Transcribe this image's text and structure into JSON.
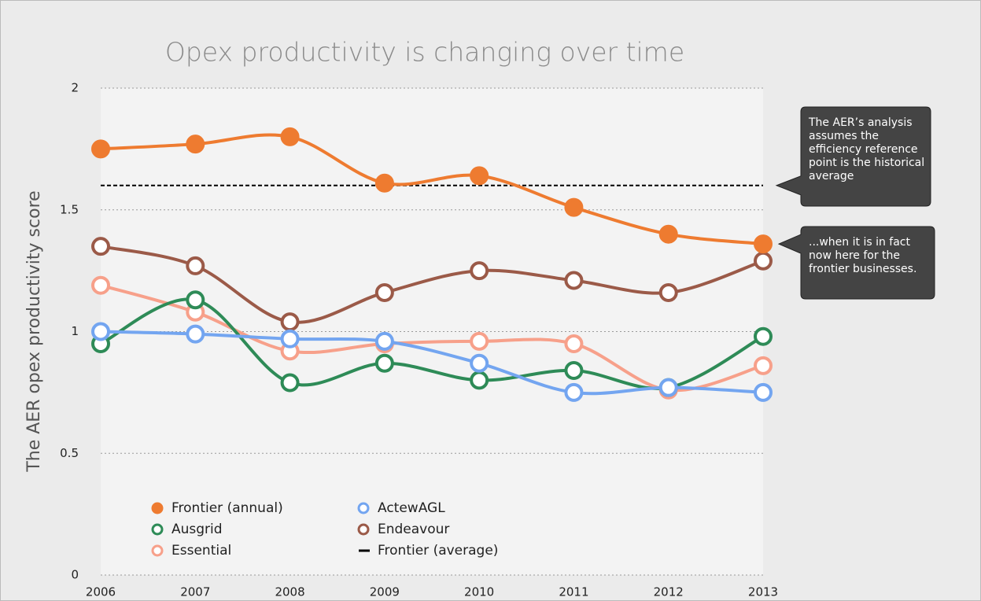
{
  "chart_data": {
    "type": "line",
    "title": "Opex productivity is changing over time",
    "y_label": "The AER opex productivity score",
    "categories": [
      "2006",
      "2007",
      "2008",
      "2009",
      "2010",
      "2011",
      "2012",
      "2013"
    ],
    "ylim": [
      0,
      2
    ],
    "yticks": [
      0,
      0.5,
      1,
      1.5,
      2
    ],
    "grid": true,
    "series": [
      {
        "name": "Frontier (annual)",
        "color": "#ee7b30",
        "marker": "filled",
        "values": [
          1.75,
          1.77,
          1.8,
          1.61,
          1.64,
          1.51,
          1.4,
          1.36
        ]
      },
      {
        "name": "Ausgrid",
        "color": "#2e8b57",
        "marker": "open",
        "values": [
          0.95,
          1.13,
          0.79,
          0.87,
          0.8,
          0.84,
          0.77,
          0.98
        ]
      },
      {
        "name": "Essential",
        "color": "#f7a08a",
        "marker": "open",
        "values": [
          1.19,
          1.08,
          0.92,
          0.95,
          0.96,
          0.95,
          0.76,
          0.86
        ]
      },
      {
        "name": "ActewAGL",
        "color": "#73a5f0",
        "marker": "open",
        "values": [
          1.0,
          0.99,
          0.97,
          0.96,
          0.87,
          0.75,
          0.77,
          0.75
        ]
      },
      {
        "name": "Endeavour",
        "color": "#9b5a48",
        "marker": "open",
        "values": [
          1.35,
          1.27,
          1.04,
          1.16,
          1.25,
          1.21,
          1.16,
          1.29
        ]
      }
    ],
    "reference_line": {
      "name": "Frontier (average)",
      "color": "#000000",
      "value": 1.6
    },
    "annotations": [
      "The AER’s analysis assumes the efficiency reference point is the historical average",
      "...when it is in fact now here for the frontier businesses."
    ]
  }
}
